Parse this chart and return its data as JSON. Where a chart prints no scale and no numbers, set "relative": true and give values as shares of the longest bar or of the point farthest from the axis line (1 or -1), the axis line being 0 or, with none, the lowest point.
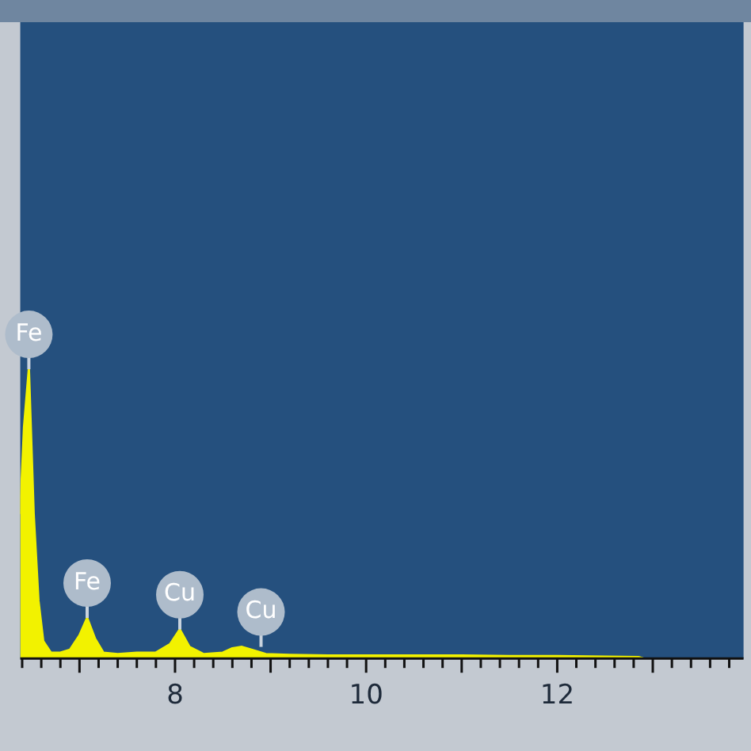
{
  "chart_data": {
    "type": "area",
    "relative": true,
    "xlim": [
      6.38,
      13.95
    ],
    "xticks": [
      {
        "value": 6.4,
        "label": null
      },
      {
        "value": 6.6,
        "label": null
      },
      {
        "value": 6.8,
        "label": null
      },
      {
        "value": 7,
        "label": null
      },
      {
        "value": 7.2,
        "label": null
      },
      {
        "value": 7.4,
        "label": null
      },
      {
        "value": 7.6,
        "label": null
      },
      {
        "value": 7.8,
        "label": null
      },
      8,
      {
        "value": 8.2,
        "label": null
      },
      {
        "value": 8.4,
        "label": null
      },
      {
        "value": 8.6,
        "label": null
      },
      {
        "value": 8.8,
        "label": null
      },
      {
        "value": 9,
        "label": null
      },
      {
        "value": 9.2,
        "label": null
      },
      {
        "value": 9.4,
        "label": null
      },
      {
        "value": 9.6,
        "label": null
      },
      {
        "value": 9.8,
        "label": null
      },
      10,
      {
        "value": 10.2,
        "label": null
      },
      {
        "value": 10.4,
        "label": null
      },
      {
        "value": 10.6,
        "label": null
      },
      {
        "value": 10.8,
        "label": null
      },
      {
        "value": 11,
        "label": null
      },
      {
        "value": 11.2,
        "label": null
      },
      {
        "value": 11.4,
        "label": null
      },
      {
        "value": 11.6,
        "label": null
      },
      {
        "value": 11.8,
        "label": null
      },
      12,
      {
        "value": 12.2,
        "label": null
      },
      {
        "value": 12.4,
        "label": null
      },
      {
        "value": 12.6,
        "label": null
      },
      {
        "value": 12.8,
        "label": null
      },
      {
        "value": 13,
        "label": null
      },
      {
        "value": 13.2,
        "label": null
      },
      {
        "value": 13.4,
        "label": null
      },
      {
        "value": 13.6,
        "label": null
      },
      {
        "value": 13.8,
        "label": null
      }
    ],
    "series": [
      {
        "color": "#f2f200",
        "x": [
          6.38,
          6.42,
          6.47,
          6.52,
          6.57,
          6.62,
          6.7,
          6.8,
          6.9,
          7.0,
          7.08,
          7.16,
          7.25,
          7.4,
          7.6,
          7.8,
          7.95,
          8.05,
          8.15,
          8.3,
          8.5,
          8.6,
          8.7,
          8.8,
          8.95,
          9.2,
          9.6,
          10,
          10.5,
          11,
          11.5,
          12,
          12.5,
          12.85,
          12.9
        ],
        "values": [
          0.5,
          0.8,
          1,
          0.5,
          0.2,
          0.06,
          0.02,
          0.02,
          0.03,
          0.08,
          0.14,
          0.07,
          0.02,
          0.015,
          0.02,
          0.02,
          0.05,
          0.1,
          0.04,
          0.015,
          0.02,
          0.035,
          0.04,
          0.03,
          0.015,
          0.012,
          0.01,
          0.01,
          0.01,
          0.01,
          0.008,
          0.008,
          0.006,
          0.005,
          0
        ]
      }
    ],
    "annotations": [
      {
        "text": "Fe",
        "x": 6.47,
        "y": 1
      },
      {
        "text": "Fe",
        "x": 7.08,
        "y": 0.14
      },
      {
        "text": "Cu",
        "x": 8.05,
        "y": 0.1
      },
      {
        "text": "Cu",
        "x": 8.9,
        "y": 0.04
      }
    ]
  }
}
